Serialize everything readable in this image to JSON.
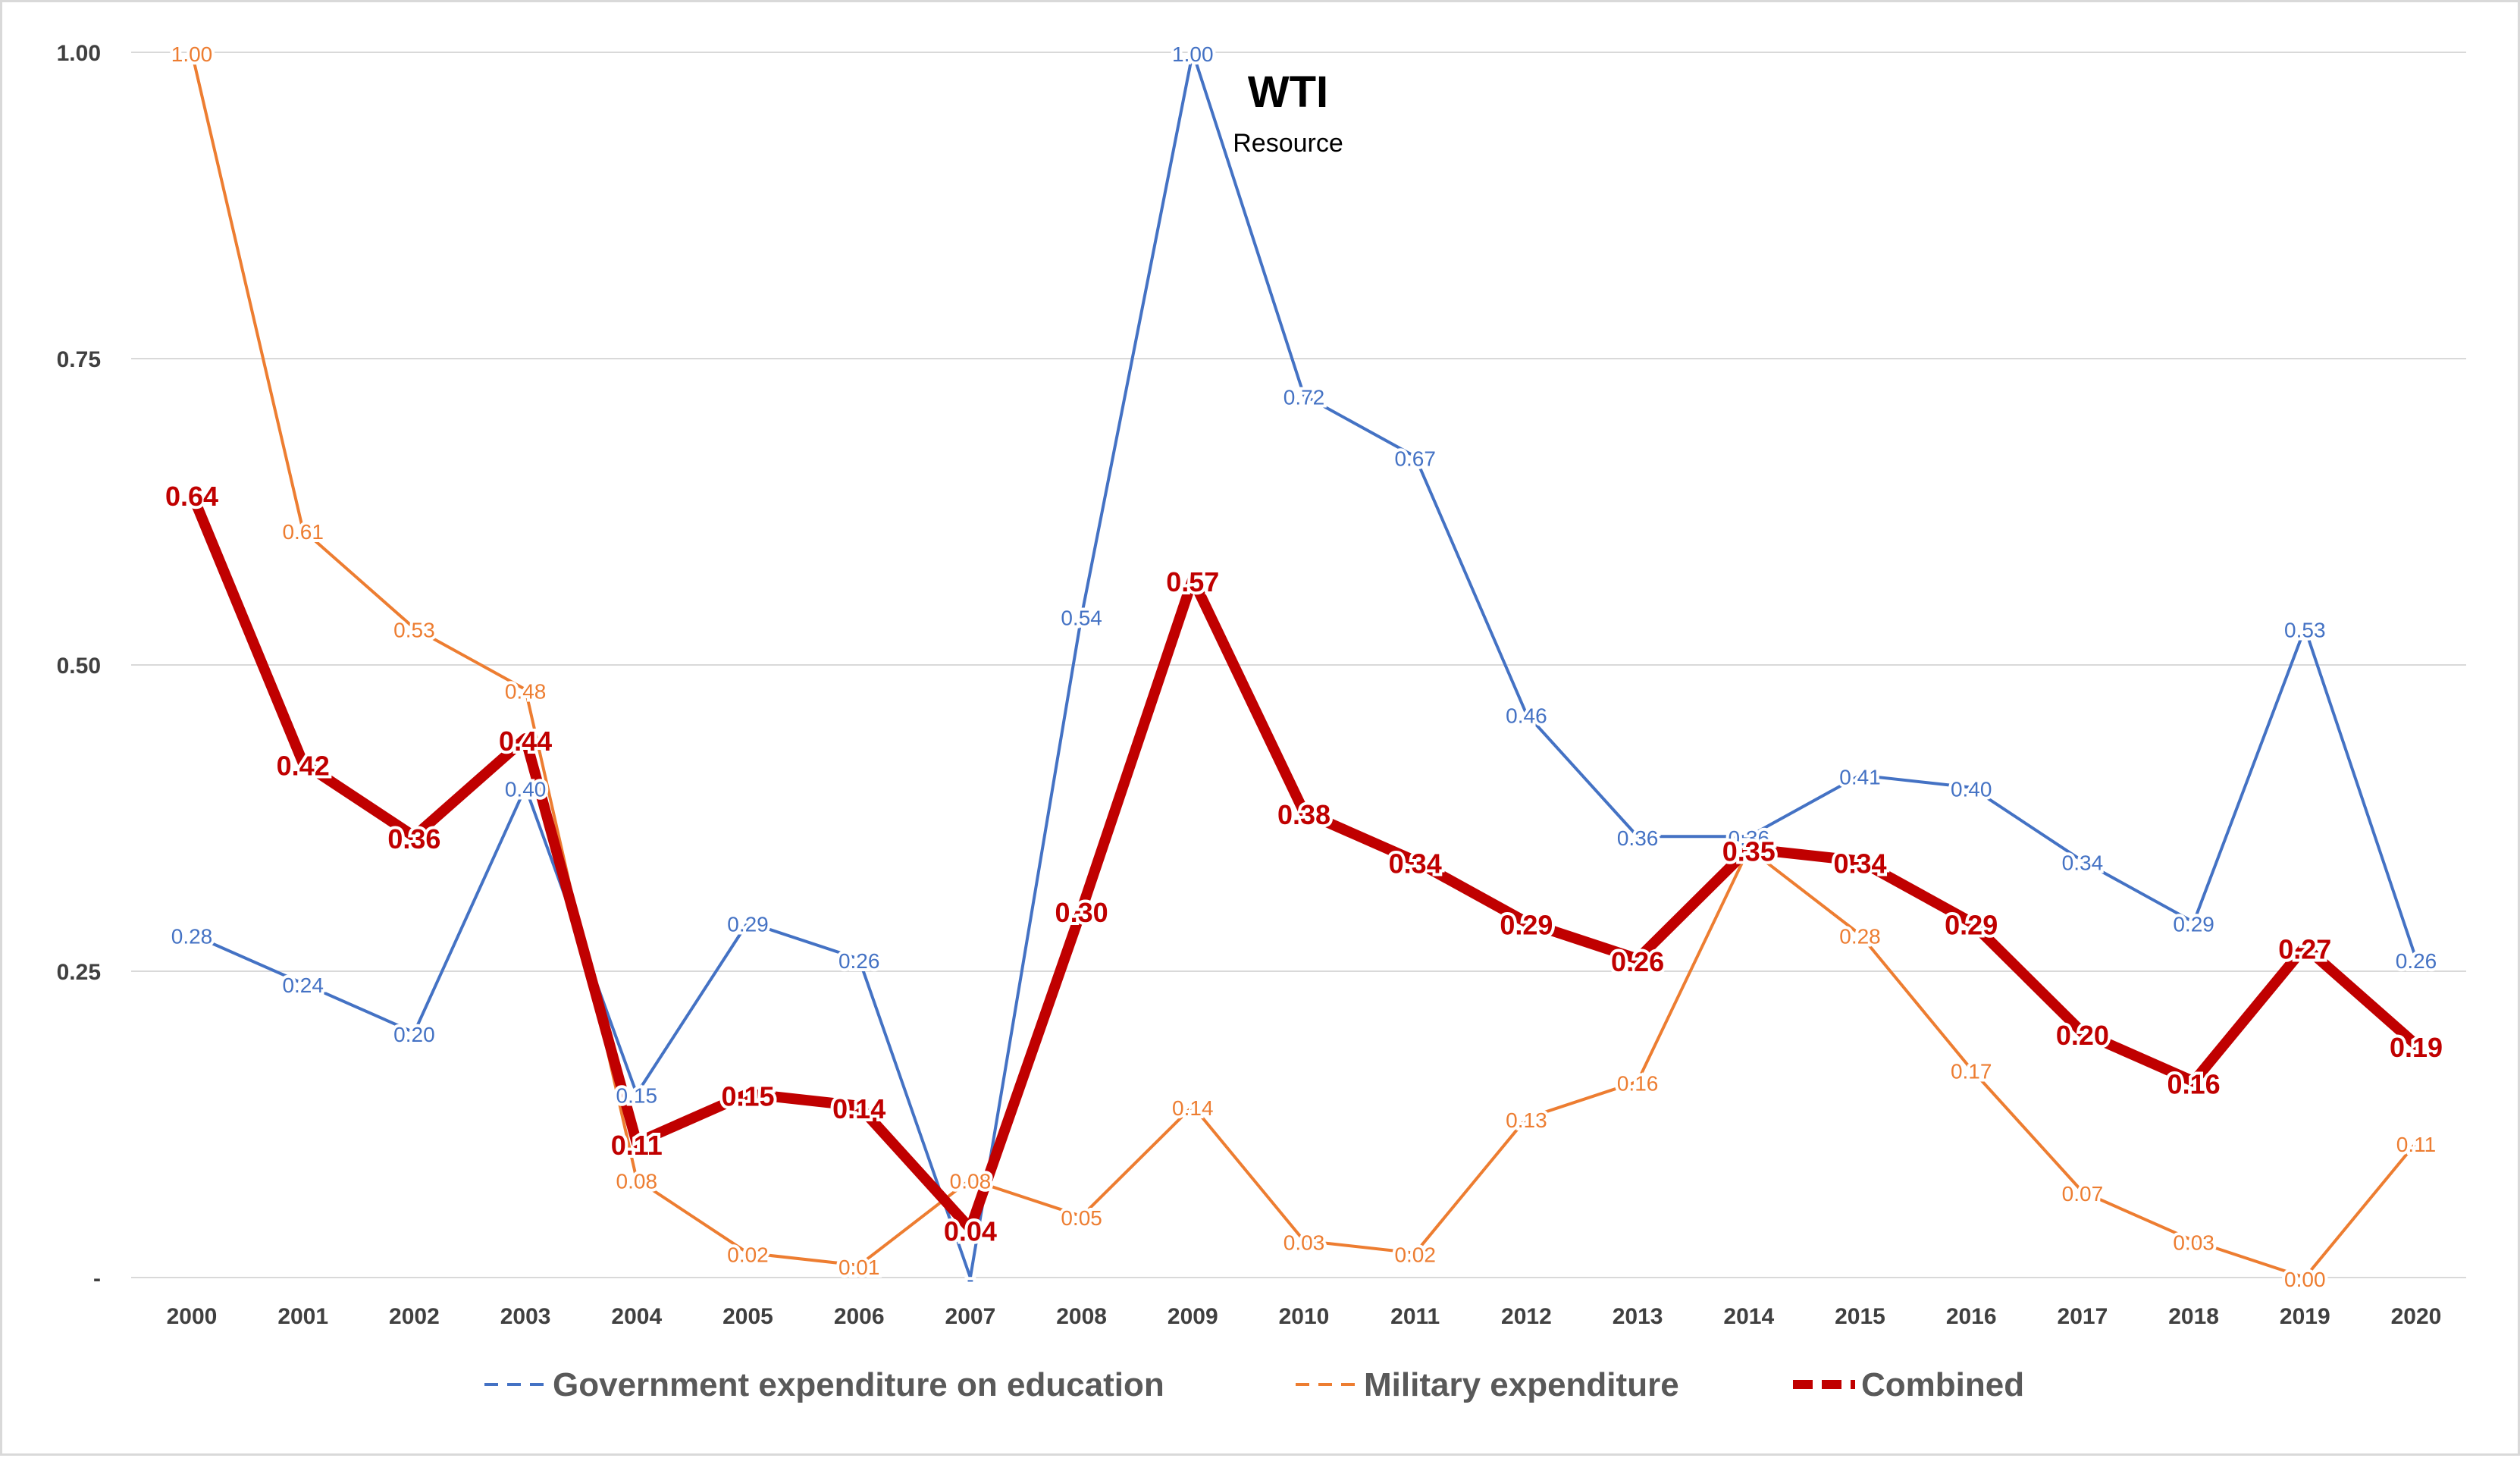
{
  "chart_data": {
    "type": "line",
    "title": "WTI",
    "subtitle": "Resource",
    "categories": [
      "2000",
      "2001",
      "2002",
      "2003",
      "2004",
      "2005",
      "2006",
      "2007",
      "2008",
      "2009",
      "2010",
      "2011",
      "2012",
      "2013",
      "2014",
      "2015",
      "2016",
      "2017",
      "2018",
      "2019",
      "2020"
    ],
    "ylim": [
      0,
      1
    ],
    "yticks": [
      0,
      0.25,
      0.5,
      0.75,
      1
    ],
    "ytick_labels": [
      "-",
      "0.25",
      "0.50",
      "0.75",
      "1.00"
    ],
    "grid": true,
    "legend_position": "bottom",
    "series": [
      {
        "name": "Government expenditure on education",
        "color": "#4472c4",
        "style": "thin-line",
        "values": [
          0.28,
          0.24,
          0.2,
          0.4,
          0.15,
          0.29,
          0.26,
          0.0,
          0.54,
          1.0,
          0.72,
          0.67,
          0.46,
          0.36,
          0.36,
          0.41,
          0.4,
          0.34,
          0.29,
          0.53,
          0.26
        ],
        "labels": [
          "0.28",
          "0.24",
          "0.20",
          "0.40",
          "0.15",
          "0.29",
          "0.26",
          "-",
          "0.54",
          "1.00",
          "0.72",
          "0.67",
          "0.46",
          "0.36",
          "0.36",
          "0.41",
          "0.40",
          "0.34",
          "0.29",
          "0.53",
          "0.26"
        ]
      },
      {
        "name": "Military expenditure",
        "color": "#ed7d31",
        "style": "thin-line",
        "values": [
          1.0,
          0.61,
          0.53,
          0.48,
          0.08,
          0.02,
          0.01,
          0.08,
          0.05,
          0.14,
          0.03,
          0.02,
          0.13,
          0.16,
          0.35,
          0.28,
          0.17,
          0.07,
          0.03,
          0.0,
          0.11
        ],
        "labels": [
          "1.00",
          "0.61",
          "0.53",
          "0.48",
          "0.08",
          "0.02",
          "0.01",
          "0.08",
          "0.05",
          "0.14",
          "0.03",
          "0.02",
          "0.13",
          "0.16",
          "0.35",
          "0.28",
          "0.17",
          "0.07",
          "0.03",
          "0.00",
          "0.11"
        ]
      },
      {
        "name": "Combined",
        "color": "#c00000",
        "style": "thick-line",
        "values": [
          0.64,
          0.42,
          0.36,
          0.44,
          0.11,
          0.15,
          0.14,
          0.04,
          0.3,
          0.57,
          0.38,
          0.34,
          0.29,
          0.26,
          0.35,
          0.34,
          0.29,
          0.2,
          0.16,
          0.27,
          0.19
        ],
        "labels": [
          "0.64",
          "0.42",
          "0.36",
          "0.44",
          "0.11",
          "0.15",
          "0.14",
          "0.04",
          "0.30",
          "0.57",
          "0.38",
          "0.34",
          "0.29",
          "0.26",
          "0.35",
          "0.34",
          "0.29",
          "0.20",
          "0.16",
          "0.27",
          "0.19"
        ]
      }
    ]
  }
}
